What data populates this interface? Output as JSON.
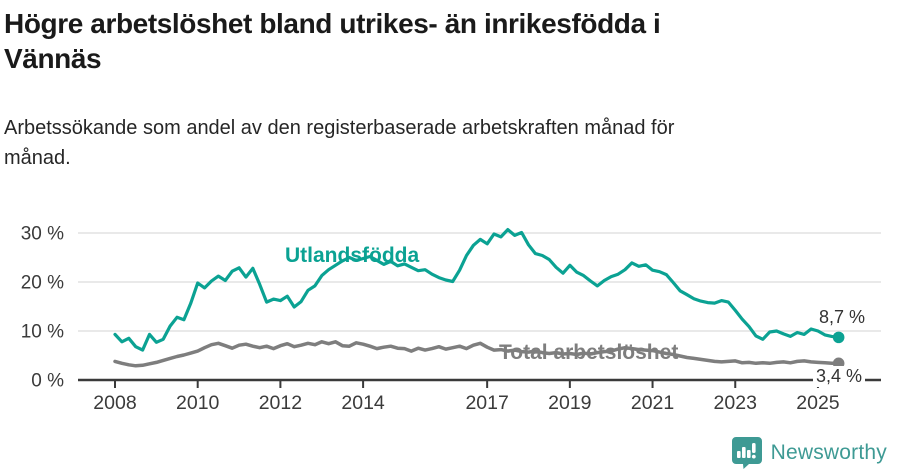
{
  "header": {
    "title_lines": [
      "Högre arbetslöshet bland utrikes- än inrikesfödda i",
      "Vännäs"
    ],
    "subtitle_lines": [
      "Arbetssökande som andel av den registerbaserade arbetskraften månad för",
      "månad."
    ]
  },
  "chart_data": {
    "type": "line",
    "title": "Högre arbetslöshet bland utrikes- än inrikesfödda i Vännäs",
    "subtitle": "Arbetssökande som andel av den registerbaserade arbetskraften månad för månad.",
    "unit": "%",
    "x_start": 2008.0,
    "x_step_years": 0.16667,
    "x_end": 2025.5,
    "ylim": [
      0,
      33
    ],
    "grid": "horizontal",
    "legend_position": "inline-labels",
    "y_ticks": [
      {
        "value": 30,
        "label": "30 %"
      },
      {
        "value": 20,
        "label": "20 %"
      },
      {
        "value": 10,
        "label": "10 %"
      },
      {
        "value": 0,
        "label": "0 %"
      }
    ],
    "x_ticks": [
      {
        "value": 2008,
        "label": "2008"
      },
      {
        "value": 2010,
        "label": "2010"
      },
      {
        "value": 2012,
        "label": "2012"
      },
      {
        "value": 2014,
        "label": "2014"
      },
      {
        "value": 2017,
        "label": "2017"
      },
      {
        "value": 2019,
        "label": "2019"
      },
      {
        "value": 2021,
        "label": "2021"
      },
      {
        "value": 2023,
        "label": "2023"
      },
      {
        "value": 2025,
        "label": "2025"
      }
    ],
    "series": [
      {
        "name": "Utlandsfödda",
        "color": "#0ba293",
        "end_label": "8,7 %",
        "last_value": 8.7,
        "values": [
          9.3,
          7.8,
          8.5,
          6.8,
          6.1,
          9.3,
          7.7,
          8.3,
          11,
          12.8,
          12.3,
          15.7,
          19.8,
          18.8,
          20.2,
          21.2,
          20.3,
          22.2,
          22.9,
          21,
          22.8,
          19.5,
          15.9,
          16.5,
          16.2,
          17.1,
          14.9,
          16,
          18.3,
          19.2,
          21.3,
          22.5,
          23.4,
          24.3,
          25,
          24.4,
          24.8,
          25.2,
          24.4,
          23.6,
          24.2,
          23.3,
          23.7,
          23,
          22.3,
          22.5,
          21.6,
          20.9,
          20.4,
          20.1,
          22.4,
          25.4,
          27.5,
          28.7,
          27.8,
          29.8,
          29.2,
          30.7,
          29.5,
          30.1,
          27.6,
          25.8,
          25.4,
          24.6,
          23,
          21.8,
          23.4,
          22,
          21.3,
          20.2,
          19.2,
          20.3,
          21.1,
          21.6,
          22.5,
          23.9,
          23.2,
          23.5,
          22.4,
          22.1,
          21.5,
          19.9,
          18.2,
          17.4,
          16.6,
          16.1,
          15.8,
          15.7,
          16.2,
          15.9,
          14.2,
          12.4,
          10.9,
          9,
          8.3,
          9.8,
          10,
          9.4,
          8.9,
          9.7,
          9.3,
          10.4,
          10,
          9.2,
          8.9,
          8.7
        ]
      },
      {
        "name": "Total arbetslöshet",
        "color": "#7e7e7e",
        "end_label": "3,4 %",
        "last_value": 3.4,
        "values": [
          3.8,
          3.4,
          3.1,
          2.9,
          3,
          3.3,
          3.6,
          4,
          4.4,
          4.8,
          5.1,
          5.5,
          5.9,
          6.6,
          7.2,
          7.5,
          7,
          6.5,
          7.1,
          7.3,
          6.9,
          6.6,
          6.9,
          6.4,
          7,
          7.4,
          6.8,
          7.1,
          7.5,
          7.2,
          7.8,
          7.4,
          7.8,
          7,
          6.9,
          7.6,
          7.3,
          6.9,
          6.4,
          6.7,
          6.9,
          6.5,
          6.4,
          5.9,
          6.5,
          6.1,
          6.4,
          6.8,
          6.3,
          6.6,
          6.9,
          6.4,
          7.1,
          7.5,
          6.7,
          6.1,
          6.2,
          5.9,
          6.1,
          5.8,
          5.7,
          5.9,
          5.6,
          5.4,
          5.6,
          5.3,
          5.4,
          5.2,
          5.5,
          5.3,
          5.6,
          5.8,
          5.9,
          6.3,
          6.6,
          6.4,
          6.2,
          6.1,
          6,
          5.7,
          5.4,
          5.2,
          4.9,
          4.6,
          4.4,
          4.2,
          4,
          3.8,
          3.7,
          3.8,
          3.9,
          3.5,
          3.6,
          3.4,
          3.5,
          3.4,
          3.6,
          3.7,
          3.5,
          3.8,
          3.9,
          3.7,
          3.6,
          3.5,
          3.4,
          3.4
        ]
      }
    ],
    "styles": {
      "gridline_color": "#e2e2e2",
      "axis_color": "#3a3a3a",
      "tick_label_color": "#3b3b3b"
    }
  },
  "footer": {
    "brand": "Newsworthy",
    "brand_color": "#3e9a94",
    "logo_icon": "bar-chart-exclamation-bubble-icon"
  }
}
